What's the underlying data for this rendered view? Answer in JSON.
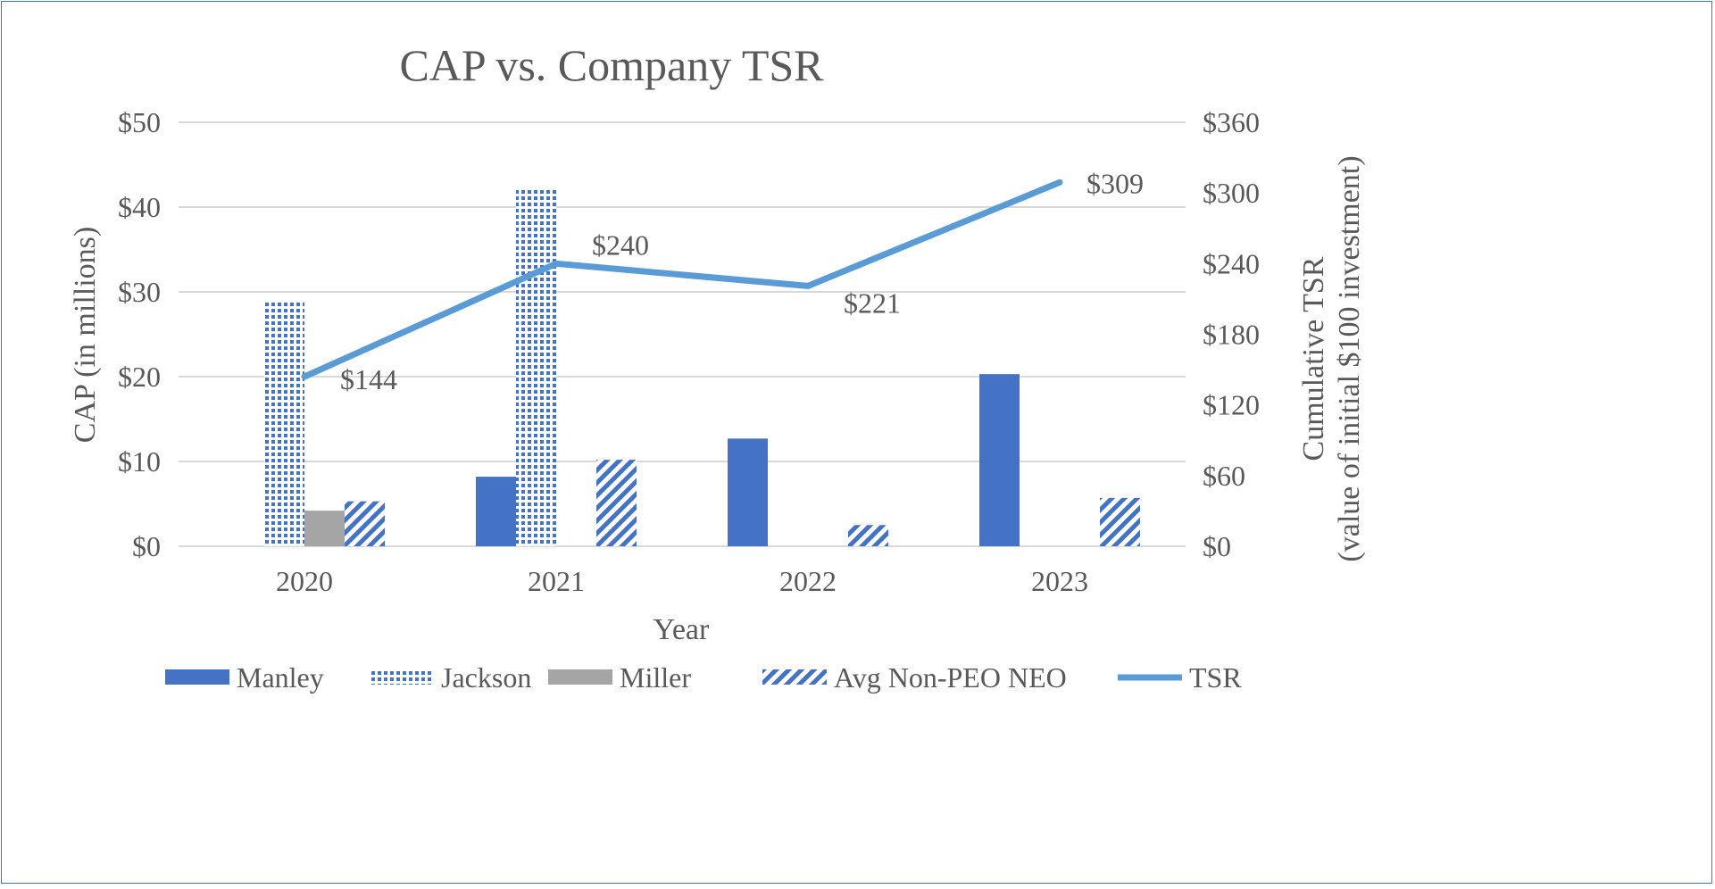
{
  "chart_data": {
    "type": "bar",
    "title": "CAP vs. Company TSR",
    "xlabel": "Year",
    "ylabel": "CAP (in millions)",
    "y2label_line1": "Cumulative TSR",
    "y2label_line2": "(value of initial $100 investment)",
    "categories": [
      "2020",
      "2021",
      "2022",
      "2023"
    ],
    "ylim": [
      0,
      50
    ],
    "y_ticks": [
      "$0",
      "$10",
      "$20",
      "$30",
      "$40",
      "$50"
    ],
    "y2lim": [
      0,
      360
    ],
    "y2_ticks": [
      "$0",
      "$60",
      "$120",
      "$180",
      "$240",
      "$300",
      "$360"
    ],
    "grid": true,
    "legend_position": "bottom",
    "series": [
      {
        "name": "Manley",
        "type": "bar",
        "pattern": "solid",
        "color": "#4472c4",
        "values": [
          0,
          8.2,
          12.7,
          20.3
        ]
      },
      {
        "name": "Jackson",
        "type": "bar",
        "pattern": "dots",
        "color": "#4472c4",
        "values": [
          28.8,
          42.2,
          0,
          0
        ]
      },
      {
        "name": "Miller",
        "type": "bar",
        "pattern": "solid",
        "color": "#a5a5a5",
        "values": [
          4.2,
          0,
          0,
          0
        ]
      },
      {
        "name": "Avg Non-PEO NEO",
        "type": "bar",
        "pattern": "diagonal",
        "color": "#4472c4",
        "values": [
          5.3,
          10.2,
          2.5,
          5.7
        ]
      },
      {
        "name": "TSR",
        "type": "line",
        "axis": "right",
        "color": "#5b9bd5",
        "values": [
          144,
          240,
          221,
          309
        ],
        "labels": [
          "$144",
          "$240",
          "$221",
          "$309"
        ]
      }
    ]
  }
}
